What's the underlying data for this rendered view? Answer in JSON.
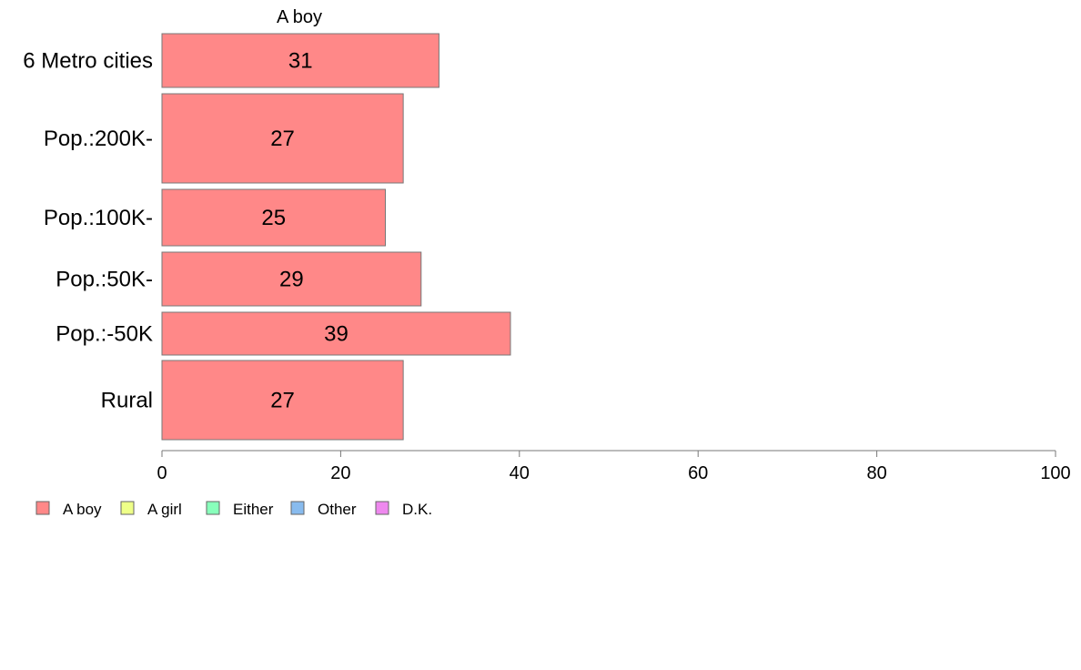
{
  "chart_data": {
    "type": "bar",
    "orientation": "horizontal",
    "column_title": "A boy",
    "categories": [
      "6 Metro cities",
      "Pop.:200K-",
      "Pop.:100K-",
      "Pop.:50K-",
      "Pop.:-50K",
      "Rural"
    ],
    "series": [
      {
        "name": "A boy",
        "values": [
          31,
          27,
          25,
          29,
          39,
          27
        ],
        "color": "#ff8888"
      }
    ],
    "data_labels": [
      "31",
      "27",
      "25",
      "29",
      "39",
      "27"
    ],
    "xlim": [
      0,
      100
    ],
    "xticks": [
      0,
      20,
      40,
      60,
      80,
      100
    ],
    "legend": {
      "placement": "bottom-left",
      "items": [
        {
          "label": "A boy",
          "color": "#ff8888"
        },
        {
          "label": "A girl",
          "color": "#eeff88"
        },
        {
          "label": "Either",
          "color": "#88ffbb"
        },
        {
          "label": "Other",
          "color": "#88bbee"
        },
        {
          "label": "D.K.",
          "color": "#ee88ee"
        }
      ]
    },
    "grid": false
  }
}
